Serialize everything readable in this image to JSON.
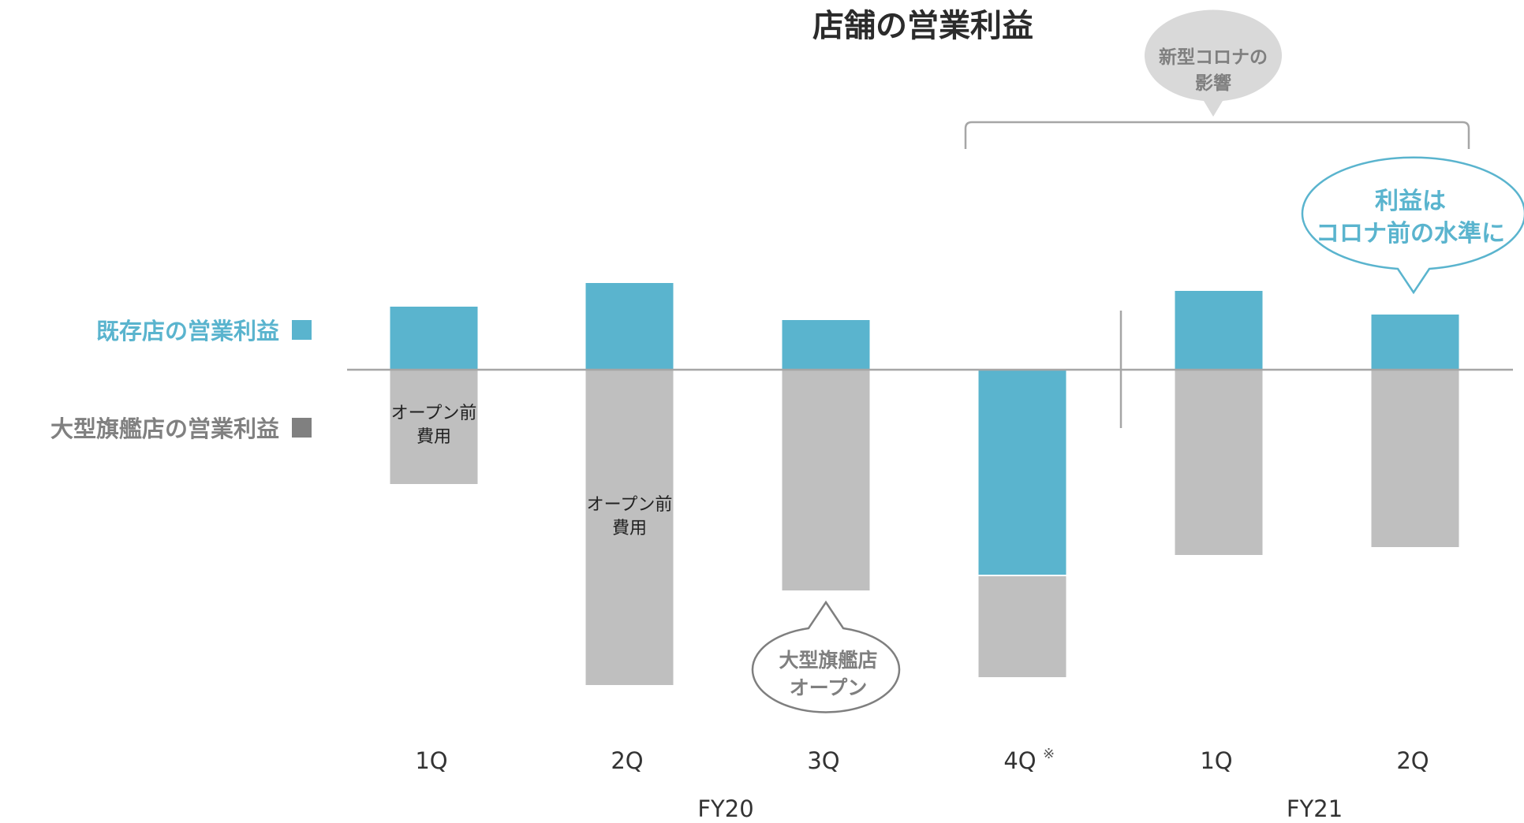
{
  "chart_data": {
    "type": "bar",
    "title": "店舗の営業利益",
    "categories": [
      "1Q",
      "2Q",
      "3Q",
      "4Q",
      "1Q",
      "2Q"
    ],
    "category_notes": [
      "",
      "",
      "",
      "※",
      "",
      ""
    ],
    "groups": [
      {
        "label": "FY20",
        "categories": [
          0,
          1,
          2,
          3
        ]
      },
      {
        "label": "FY21",
        "categories": [
          4,
          5
        ]
      }
    ],
    "series": [
      {
        "name": "既存店の営業利益",
        "color": "#5ab4ce",
        "values": [
          8,
          11,
          6.3,
          -26,
          10,
          7
        ]
      },
      {
        "name": "大型旗艦店の営業利益",
        "color": "#bfbfbf",
        "values": [
          -14.5,
          -40,
          -28,
          -13,
          -23.5,
          -22.5
        ]
      }
    ],
    "legend_marker_colors": [
      "#5ab4ce",
      "#808080"
    ],
    "bar_annotations": [
      {
        "category": 0,
        "lines": [
          "オープン前",
          "費用"
        ]
      },
      {
        "category": 1,
        "lines": [
          "オープン前",
          "費用"
        ]
      }
    ],
    "callouts": [
      {
        "category": 2,
        "lines": [
          "大型旗艦店",
          "オープン"
        ],
        "color": "#7f7f7f"
      },
      {
        "category": 5,
        "lines": [
          "利益は",
          "コロナ前の水準に"
        ],
        "color": "#5ab4ce"
      },
      {
        "lines": [
          "新型コロナの",
          "影響"
        ],
        "color": "#7f7f7f",
        "spans": [
          3,
          5
        ]
      }
    ],
    "ylim": [
      -46,
      12
    ],
    "baseline": 0,
    "xlabel": "",
    "ylabel": "",
    "grid": false,
    "legend": "left"
  }
}
